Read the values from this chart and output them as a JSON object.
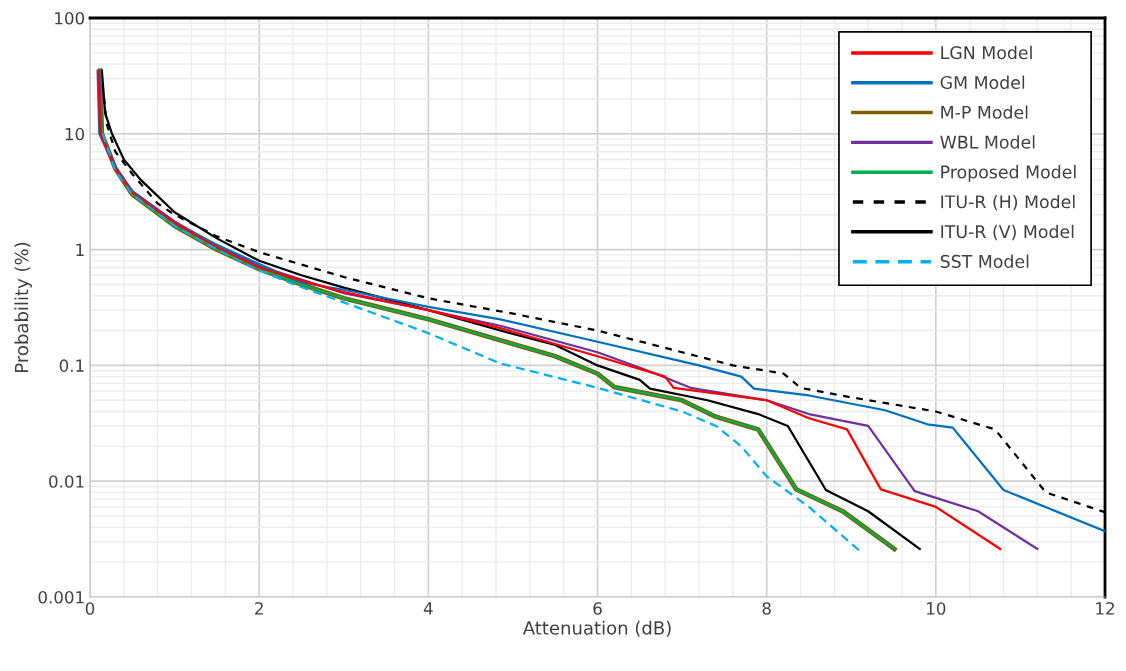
{
  "chart_data": {
    "type": "line",
    "xlabel": "Attenuation (dB)",
    "ylabel": "Probability (%)",
    "xlim": [
      0,
      12
    ],
    "xticks": [
      0,
      2,
      4,
      6,
      8,
      10,
      12
    ],
    "ylim": [
      0.001,
      100
    ],
    "yticks": [
      0.001,
      0.01,
      0.1,
      1,
      10,
      100
    ],
    "log": "y",
    "grid": true,
    "legend": "top right",
    "series": [
      {
        "name": "LGN Model",
        "color": "#ff0000",
        "line_style": "solid",
        "x": [
          0.1,
          0.12,
          0.3,
          0.5,
          1,
          1.5,
          2,
          2.5,
          3,
          4,
          4.85,
          6,
          6.8,
          6.9,
          8,
          8.5,
          8.95,
          9.35,
          10,
          10.76
        ],
        "values": [
          35,
          10,
          5,
          3.1,
          1.7,
          1.05,
          0.7,
          0.54,
          0.43,
          0.3,
          0.21,
          0.12,
          0.08,
          0.064,
          0.05,
          0.035,
          0.028,
          0.0085,
          0.006,
          0.0026
        ]
      },
      {
        "name": "GM Model",
        "color": "#0070c0",
        "line_style": "solid",
        "x": [
          0.09,
          0.11,
          0.3,
          0.5,
          1,
          1.5,
          2,
          2.5,
          3,
          3.5,
          4,
          4.85,
          6,
          7.2,
          7.7,
          7.85,
          8.5,
          9.4,
          9.9,
          10.2,
          10.8,
          12
        ],
        "values": [
          35,
          10,
          5,
          3.2,
          1.7,
          1.1,
          0.75,
          0.52,
          0.45,
          0.38,
          0.32,
          0.25,
          0.16,
          0.1,
          0.08,
          0.063,
          0.055,
          0.041,
          0.031,
          0.029,
          0.0084,
          0.0037
        ]
      },
      {
        "name": "M-P Model",
        "color": "#7f6000",
        "line_style": "solid",
        "x": [
          0.12,
          0.14,
          0.3,
          0.5,
          1,
          1.5,
          2,
          2.5,
          3,
          4,
          4.85,
          5.5,
          6,
          6.2,
          7,
          7.4,
          7.9,
          8.35,
          8.9,
          9.51
        ],
        "values": [
          35,
          10,
          5,
          3,
          1.6,
          1.0,
          0.68,
          0.5,
          0.38,
          0.25,
          0.165,
          0.12,
          0.085,
          0.065,
          0.05,
          0.036,
          0.028,
          0.0085,
          0.0055,
          0.0026
        ]
      },
      {
        "name": "WBL Model",
        "color": "#7030a0",
        "line_style": "solid",
        "x": [
          0.11,
          0.13,
          0.3,
          0.5,
          1,
          1.5,
          2,
          2.5,
          3,
          4,
          4.85,
          6,
          6.6,
          7.1,
          8,
          8.5,
          9.2,
          9.75,
          10.5,
          11.2
        ],
        "values": [
          35,
          10,
          5.2,
          3.2,
          1.75,
          1.08,
          0.72,
          0.55,
          0.42,
          0.3,
          0.22,
          0.13,
          0.09,
          0.064,
          0.05,
          0.038,
          0.03,
          0.0082,
          0.0055,
          0.0026
        ]
      },
      {
        "name": "Proposed Model",
        "color": "#00b050",
        "line_style": "solid",
        "x": [
          0.12,
          0.14,
          0.3,
          0.5,
          1,
          1.5,
          2,
          2.5,
          3,
          4,
          4.85,
          5.5,
          6,
          6.2,
          7,
          7.4,
          7.9,
          8.35,
          8.9,
          9.51
        ],
        "values": [
          35,
          10,
          5,
          3,
          1.6,
          1.0,
          0.68,
          0.5,
          0.38,
          0.25,
          0.165,
          0.12,
          0.085,
          0.065,
          0.05,
          0.036,
          0.028,
          0.0085,
          0.0055,
          0.0026
        ]
      },
      {
        "name": "ITU-R (H) Model",
        "color": "#000000",
        "line_style": "dotted",
        "x": [
          0.13,
          0.2,
          0.3,
          0.5,
          0.8,
          1,
          1.5,
          2,
          3,
          4,
          5,
          6,
          7,
          7.6,
          8.2,
          8.4,
          9,
          10,
          10.7,
          11.3,
          12
        ],
        "values": [
          35,
          12,
          7,
          4.5,
          2.5,
          2,
          1.3,
          0.95,
          0.58,
          0.38,
          0.28,
          0.2,
          0.13,
          0.1,
          0.085,
          0.064,
          0.053,
          0.04,
          0.028,
          0.008,
          0.0054
        ]
      },
      {
        "name": "ITU-R (V) Model",
        "color": "#000000",
        "line_style": "solid",
        "x": [
          0.14,
          0.18,
          0.26,
          0.4,
          0.6,
          1,
          1.5,
          2,
          2.5,
          3,
          4,
          4.85,
          5.5,
          6,
          6.5,
          6.62,
          7.3,
          7.9,
          8.25,
          8.7,
          9.2,
          9.81
        ],
        "values": [
          35,
          15,
          10,
          6,
          4,
          2.1,
          1.25,
          0.8,
          0.6,
          0.47,
          0.3,
          0.2,
          0.15,
          0.1,
          0.075,
          0.063,
          0.05,
          0.038,
          0.03,
          0.0084,
          0.0055,
          0.0026
        ]
      },
      {
        "name": "SST Model",
        "color": "#00b0f0",
        "line_style": "dashed",
        "x": [
          0.15,
          0.3,
          0.5,
          1,
          1.5,
          2,
          2.48,
          3,
          4,
          4.85,
          6,
          7,
          7.4,
          7.7,
          8,
          8.5,
          9.1
        ],
        "values": [
          10,
          4.8,
          3,
          1.6,
          1.0,
          0.66,
          0.48,
          0.35,
          0.19,
          0.104,
          0.064,
          0.04,
          0.03,
          0.02,
          0.011,
          0.006,
          0.0025
        ]
      }
    ]
  }
}
